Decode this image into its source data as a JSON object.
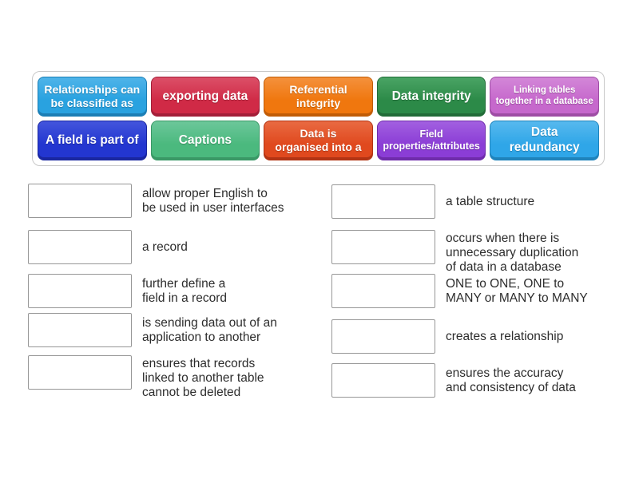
{
  "word_bank": {
    "tiles": [
      {
        "label": "Relationships can be classified as",
        "lines": [
          "Relationships can",
          "be classified as"
        ],
        "size": "fs14",
        "colors": {
          "top": "#4fb4e9",
          "base": "#29a2e0",
          "edge": "#1c7eb4"
        }
      },
      {
        "label": "exporting data",
        "lines": [
          "exporting data"
        ],
        "size": "fs16",
        "colors": {
          "top": "#dc5068",
          "base": "#d02a46",
          "edge": "#a31f39"
        }
      },
      {
        "label": "Referential integrity",
        "lines": [
          "Referential",
          "integrity"
        ],
        "size": "fs14",
        "colors": {
          "top": "#f4913c",
          "base": "#f0770e",
          "edge": "#c05c07"
        }
      },
      {
        "label": "Data integrity",
        "lines": [
          "Data integrity"
        ],
        "size": "fs16",
        "colors": {
          "top": "#4aa465",
          "base": "#2c8a48",
          "edge": "#226c38"
        }
      },
      {
        "label": "Linking tables together in a database",
        "lines": [
          "Linking tables",
          "together in a database"
        ],
        "size": "fs11",
        "colors": {
          "top": "#d387d8",
          "base": "#c668cc",
          "edge": "#9e4da4"
        }
      },
      {
        "label": "A field is part of",
        "lines": [
          "A field is part of"
        ],
        "size": "fs16",
        "colors": {
          "top": "#4355dc",
          "base": "#2336d0",
          "edge": "#1a27a0"
        }
      },
      {
        "label": "Captions",
        "lines": [
          "Captions"
        ],
        "size": "fs16",
        "colors": {
          "top": "#6cc79a",
          "base": "#4bb97e",
          "edge": "#3a9866"
        }
      },
      {
        "label": "Data is organised into a",
        "lines": [
          "Data is",
          "organised into a"
        ],
        "size": "fs14",
        "colors": {
          "top": "#e96a42",
          "base": "#e0491e",
          "edge": "#b23414"
        }
      },
      {
        "label": "Field properties/attributes",
        "lines": [
          "Field",
          "properties/attributes"
        ],
        "size": "fs13",
        "colors": {
          "top": "#a260e0",
          "base": "#8b3dd6",
          "edge": "#6f2cab"
        }
      },
      {
        "label": "Data redundancy",
        "lines": [
          "Data",
          "redundancy"
        ],
        "size": "fs16",
        "colors": {
          "top": "#57b9ee",
          "base": "#2fa6e8",
          "edge": "#1f83bb"
        }
      }
    ]
  },
  "matches": {
    "left": [
      {
        "clue": "allow proper English to be used in user interfaces",
        "lines": [
          "allow proper English to",
          "be used in user interfaces"
        ]
      },
      {
        "clue": "a record",
        "lines": [
          "a record"
        ]
      },
      {
        "clue": "further define a field in a record",
        "lines": [
          "further define a",
          "field in a record"
        ]
      },
      {
        "clue": "is sending data out of an application to another",
        "lines": [
          "is sending data out of an",
          "application to another"
        ]
      },
      {
        "clue": "ensures that records linked to another table cannot be deleted",
        "lines": [
          "ensures that records",
          "linked to another table",
          "cannot be deleted"
        ]
      }
    ],
    "right": [
      {
        "clue": "a table structure",
        "lines": [
          "a table structure"
        ]
      },
      {
        "clue": "occurs when there is unnecessary duplication of data in a database",
        "lines": [
          "occurs when there is",
          "unnecessary duplication",
          "of data in a database"
        ]
      },
      {
        "clue": "ONE to ONE, ONE to MANY or MANY to MANY",
        "lines": [
          "ONE to ONE, ONE to",
          "MANY or MANY to MANY"
        ]
      },
      {
        "clue": "creates a relationship",
        "lines": [
          "creates a relationship"
        ]
      },
      {
        "clue": "ensures the accuracy and consistency of data",
        "lines": [
          "ensures the accuracy",
          "and consistency of data"
        ]
      }
    ]
  },
  "colors": {
    "page_background": "#ffffff",
    "bank_border": "#c9c9c9",
    "slot_border": "#979797",
    "clue_text": "#2d2d2d"
  }
}
